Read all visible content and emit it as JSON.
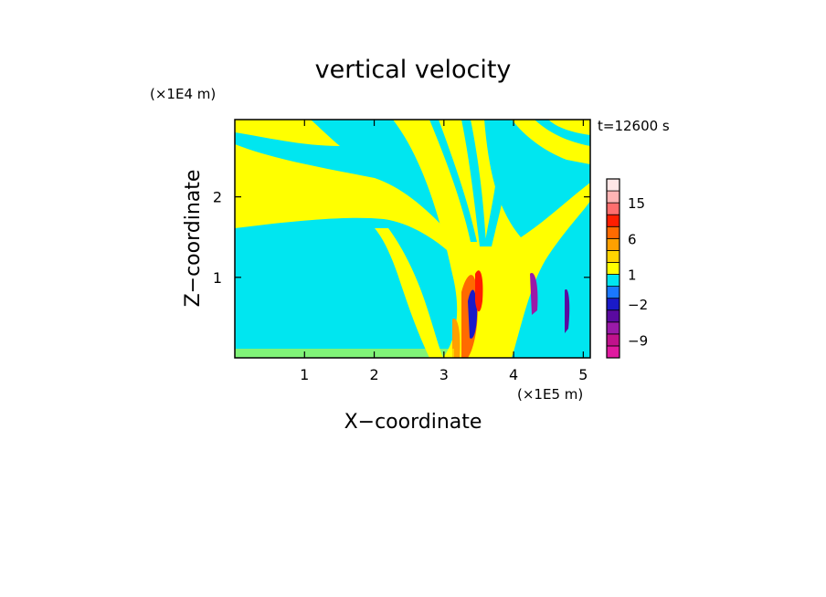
{
  "chart_data": {
    "type": "heatmap",
    "title": "vertical velocity",
    "time_label": "t=12600 s",
    "xlabel": "X−coordinate",
    "ylabel": "Z−coordinate",
    "x_unit": "(×1E5 m)",
    "y_unit": "(×1E4 m)",
    "xlim": [
      0,
      5.1
    ],
    "ylim": [
      0,
      2.96
    ],
    "x_ticks": [
      {
        "v": 1,
        "label": "1"
      },
      {
        "v": 2,
        "label": "2"
      },
      {
        "v": 3,
        "label": "3"
      },
      {
        "v": 4,
        "label": "4"
      },
      {
        "v": 5,
        "label": "5"
      }
    ],
    "y_ticks": [
      {
        "v": 1,
        "label": "1"
      },
      {
        "v": 2,
        "label": "2"
      }
    ],
    "colorbar": {
      "levels": [
        {
          "color": "#e01aa0"
        },
        {
          "color": "#c0128c"
        },
        {
          "color": "#9a1aa8"
        },
        {
          "color": "#5a0aa0"
        },
        {
          "color": "#1a1ac8"
        },
        {
          "color": "#1a78ff"
        },
        {
          "color": "#00e6f0"
        },
        {
          "color": "#ffff00"
        },
        {
          "color": "#ffd400"
        },
        {
          "color": "#ffa000"
        },
        {
          "color": "#ff6a00"
        },
        {
          "color": "#ff1e00"
        },
        {
          "color": "#ff6e6e"
        },
        {
          "color": "#ffb4b4"
        },
        {
          "color": "#ffe6e6"
        }
      ],
      "labels": [
        "−9",
        "−2",
        "1",
        "6",
        "15"
      ]
    },
    "colors": {
      "background_field": "#00e6f0",
      "positive_field": "#ffff00"
    }
  }
}
